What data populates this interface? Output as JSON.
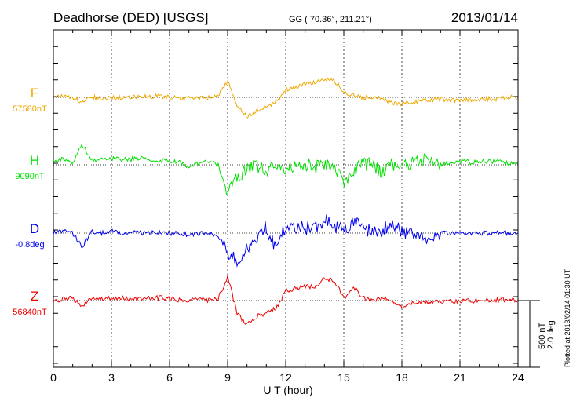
{
  "chart_data": {
    "type": "line",
    "title": "Deadhorse (DED)  [USGS]",
    "coords": "GG ( 70.36°, 211.21°)",
    "date": "2013/01/14",
    "xlabel": "U T (hour)",
    "xlim": [
      0,
      24
    ],
    "x_ticks": [
      "0",
      "3",
      "6",
      "9",
      "12",
      "15",
      "18",
      "21",
      "24"
    ],
    "scale_label_nT": "500 nT",
    "scale_label_deg": "2.0 deg",
    "plotted_note": "Plotted at 2013/02/14 01:30 UT",
    "sample_step_hours": 0.5,
    "series": [
      {
        "name": "F",
        "baseline": "57580nT",
        "color": "#f0a800",
        "unit": "nT",
        "values": [
          0,
          10,
          5,
          -40,
          0,
          -5,
          0,
          0,
          0,
          5,
          5,
          10,
          0,
          -5,
          -5,
          0,
          -5,
          5,
          130,
          -60,
          -150,
          -100,
          -60,
          -40,
          60,
          80,
          100,
          110,
          140,
          130,
          40,
          10,
          0,
          0,
          -10,
          -40,
          -50,
          -30,
          -30,
          -20,
          -10,
          -20,
          -20,
          -20,
          -15,
          -10,
          -10,
          0,
          0
        ]
      },
      {
        "name": "H",
        "baseline": "9090nT",
        "color": "#00e000",
        "unit": "nT",
        "values": [
          30,
          40,
          20,
          150,
          40,
          40,
          50,
          40,
          40,
          50,
          40,
          30,
          30,
          20,
          -10,
          10,
          20,
          0,
          -200,
          -100,
          -30,
          0,
          -60,
          0,
          -40,
          10,
          0,
          -20,
          10,
          0,
          -120,
          -60,
          10,
          0,
          -60,
          0,
          20,
          10,
          40,
          60,
          0,
          20,
          30,
          20,
          20,
          30,
          20,
          10,
          20
        ]
      },
      {
        "name": "D",
        "baseline": "-0.8deg",
        "color": "#0000ee",
        "unit": "deg",
        "values": [
          0,
          0.05,
          0,
          -0.4,
          0.05,
          0,
          0.05,
          0,
          0,
          0.03,
          0,
          0.02,
          0,
          0,
          -0.05,
          0,
          0,
          -0.05,
          -0.6,
          -0.8,
          -0.4,
          -0.3,
          0.2,
          -0.5,
          0.2,
          0.2,
          0.15,
          0.1,
          0.4,
          0.2,
          0.1,
          0.3,
          0.2,
          0,
          0.1,
          0.3,
          0.05,
          0,
          0,
          -0.3,
          0,
          0,
          0,
          0,
          0,
          0,
          0,
          0,
          0
        ]
      },
      {
        "name": "Z",
        "baseline": "56840nT",
        "color": "#ee0000",
        "unit": "nT",
        "values": [
          0,
          10,
          20,
          -50,
          20,
          15,
          15,
          20,
          15,
          15,
          20,
          20,
          15,
          5,
          5,
          10,
          0,
          10,
          180,
          -100,
          -180,
          -120,
          -90,
          -60,
          70,
          90,
          110,
          100,
          170,
          150,
          20,
          100,
          20,
          0,
          20,
          -10,
          -40,
          -20,
          -20,
          -10,
          -10,
          -5,
          0,
          0,
          0,
          0,
          5,
          10,
          5
        ]
      }
    ]
  }
}
